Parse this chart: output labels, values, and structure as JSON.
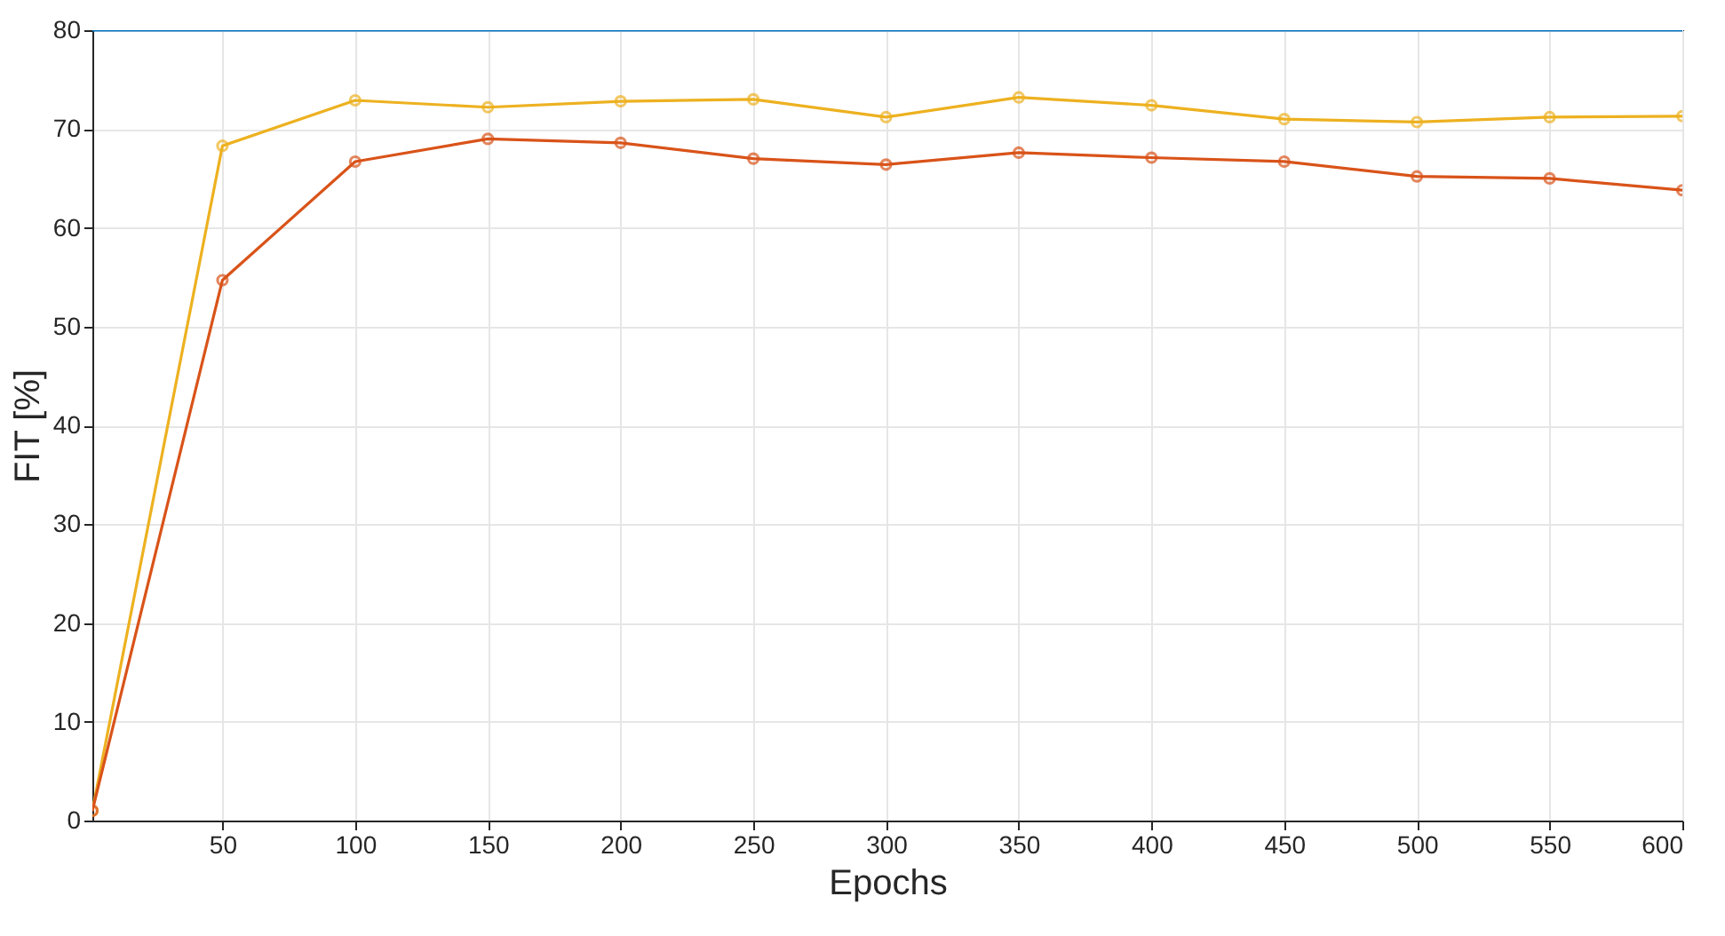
{
  "chart_data": {
    "type": "line",
    "xlabel": "Epochs",
    "ylabel": "FIT [%]",
    "x": [
      1,
      50,
      100,
      150,
      200,
      250,
      300,
      350,
      400,
      450,
      500,
      550,
      600
    ],
    "series": [
      {
        "color": "#0072bd",
        "marker": "none",
        "values": [
          80,
          80,
          80,
          80,
          80,
          80,
          80,
          80,
          80,
          80,
          80,
          80,
          80
        ]
      },
      {
        "color": "#edb120",
        "marker": "circle",
        "values": [
          1,
          68.3,
          72.9,
          72.2,
          72.8,
          73.0,
          71.2,
          73.2,
          72.4,
          71.0,
          70.7,
          71.2,
          71.3
        ]
      },
      {
        "color": "#d95319",
        "marker": "circle",
        "values": [
          1,
          54.7,
          66.7,
          69.0,
          68.6,
          67.0,
          66.4,
          67.6,
          67.1,
          66.7,
          65.2,
          65.0,
          63.8
        ]
      }
    ],
    "xlim": [
      1,
      600
    ],
    "xticks": [
      50,
      100,
      150,
      200,
      250,
      300,
      350,
      400,
      450,
      500,
      550,
      600
    ],
    "ylim": [
      0,
      80
    ],
    "yticks": [
      0,
      10,
      20,
      30,
      40,
      50,
      60,
      70,
      80
    ],
    "grid": true,
    "line_style": "solid"
  }
}
